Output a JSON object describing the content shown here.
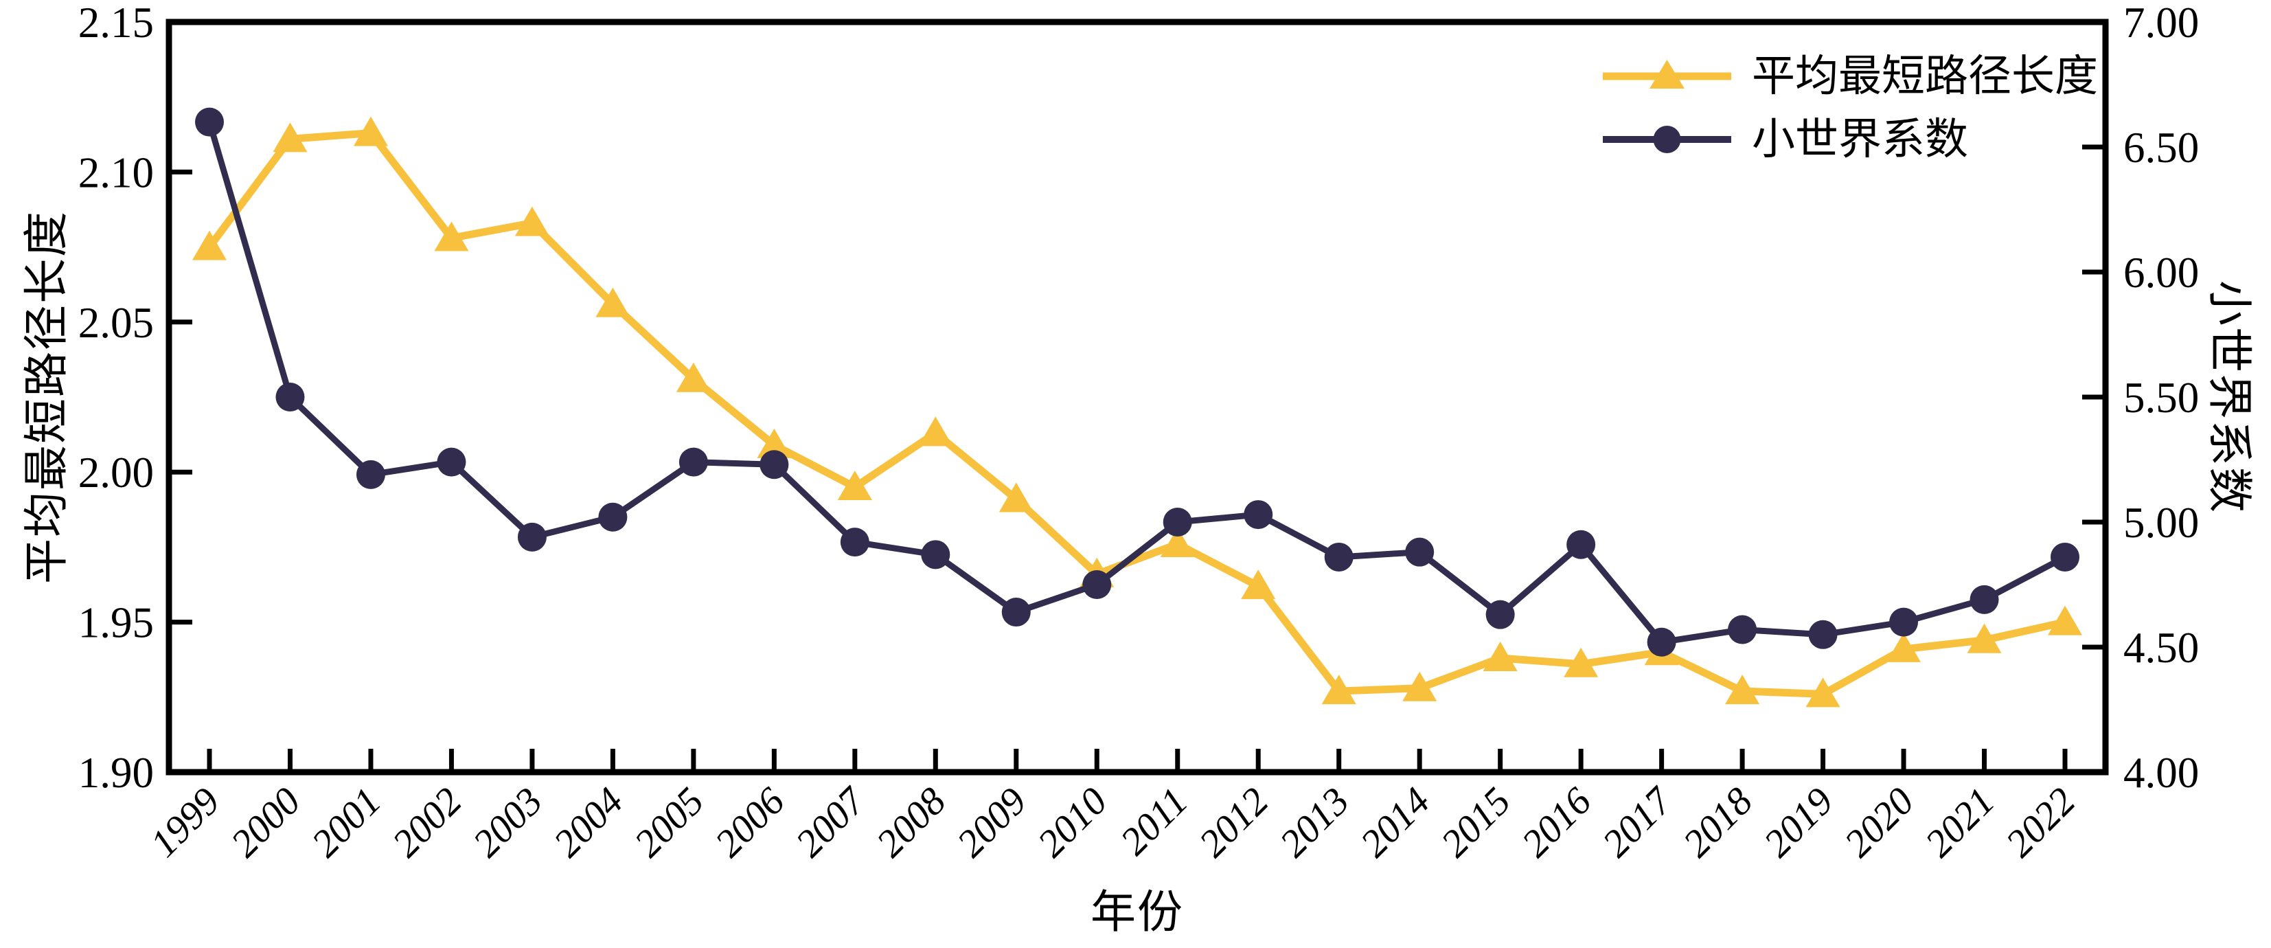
{
  "chart_data": {
    "type": "line",
    "title": "",
    "xlabel": "年份",
    "grid": false,
    "background_color": "#FFFFFF",
    "frame_color": "#000000",
    "categories": [
      "1999",
      "2000",
      "2001",
      "2002",
      "2003",
      "2004",
      "2005",
      "2006",
      "2007",
      "2008",
      "2009",
      "2010",
      "2011",
      "2012",
      "2013",
      "2014",
      "2015",
      "2016",
      "2017",
      "2018",
      "2019",
      "2020",
      "2021",
      "2022"
    ],
    "series": [
      {
        "name": "平均最短路径长度",
        "axis": "left",
        "marker": "triangle",
        "color": "#F7C13D",
        "values": [
          2.075,
          2.111,
          2.113,
          2.078,
          2.083,
          2.056,
          2.031,
          2.009,
          1.995,
          2.013,
          1.991,
          1.966,
          1.976,
          1.962,
          1.927,
          1.928,
          1.938,
          1.936,
          1.94,
          1.927,
          1.926,
          1.941,
          1.944,
          1.95
        ]
      },
      {
        "name": "小世界系数",
        "axis": "right",
        "marker": "circle",
        "color": "#322C4F",
        "values": [
          6.6,
          5.5,
          5.19,
          5.24,
          4.94,
          5.02,
          5.24,
          5.23,
          4.92,
          4.87,
          4.64,
          4.75,
          5.0,
          5.03,
          4.86,
          4.88,
          4.63,
          4.91,
          4.52,
          4.57,
          4.55,
          4.6,
          4.69,
          4.86
        ]
      }
    ],
    "left_axis": {
      "label": "平均最短路径长度",
      "min": 1.9,
      "max": 2.15,
      "tick_step": 0.05,
      "tick_labels": [
        "2.15",
        "2.10",
        "2.05",
        "2.00",
        "1.95",
        "1.90"
      ]
    },
    "right_axis": {
      "label": "小世界系数",
      "min": 4.0,
      "max": 7.0,
      "tick_step": 0.5,
      "tick_labels": [
        "7.00",
        "6.50",
        "6.00",
        "5.50",
        "5.00",
        "4.50",
        "4.00"
      ]
    },
    "x_axis": {
      "label": "年份",
      "tick_label_rotation_deg": 45,
      "tick_label_style": "italic"
    },
    "legend": {
      "position": "top-right-inside",
      "entries": [
        "平均最短路径长度",
        "小世界系数"
      ]
    }
  }
}
